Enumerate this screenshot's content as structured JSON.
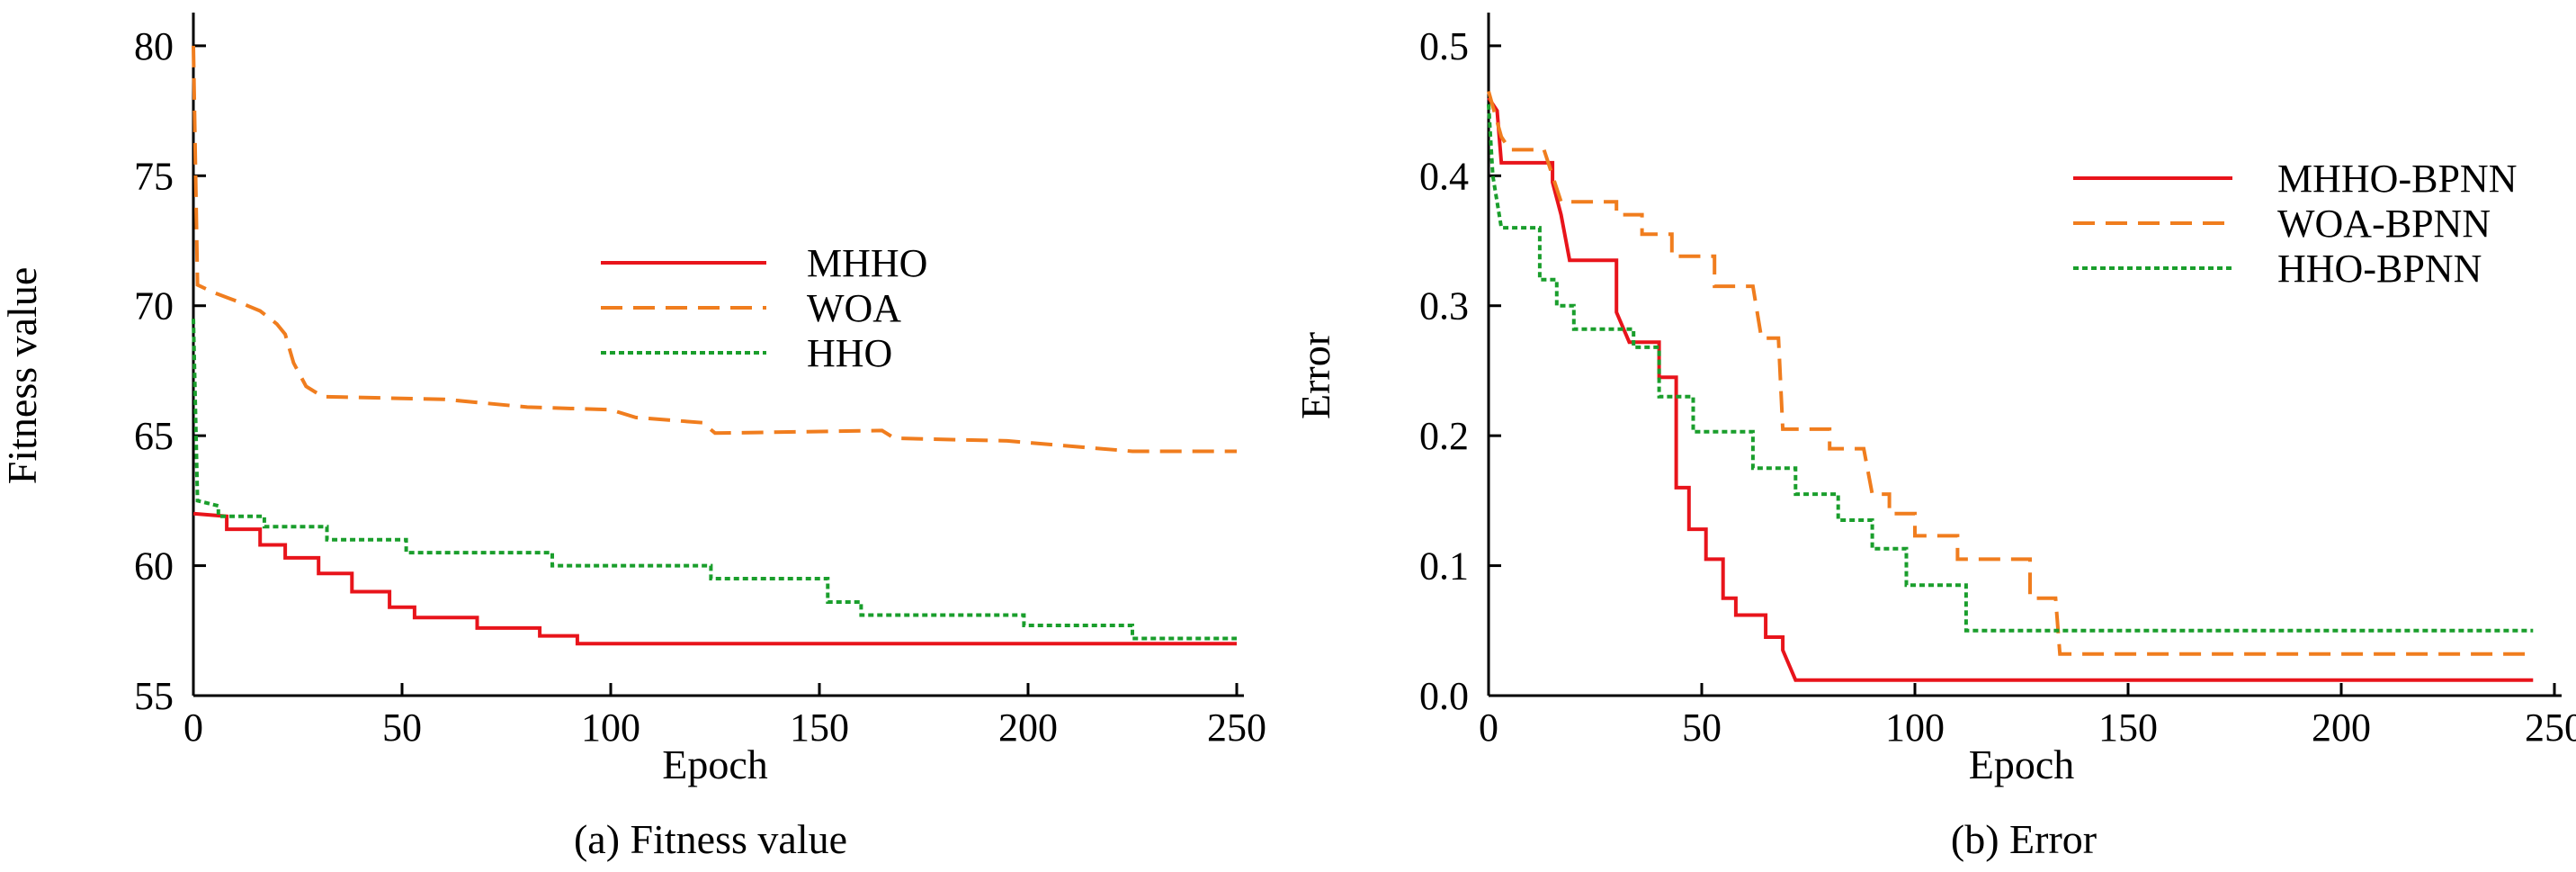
{
  "panels": [
    {
      "caption": "(a) Fitness value"
    },
    {
      "caption": "(b) Error"
    }
  ],
  "chart_data": [
    {
      "type": "line",
      "step": true,
      "xlabel": "Epoch",
      "ylabel": "Fitness value",
      "xlim": [
        0,
        250
      ],
      "ylim": [
        55,
        81
      ],
      "xticks": [
        0,
        50,
        100,
        150,
        200,
        250
      ],
      "yticks": [
        55,
        60,
        65,
        70,
        75,
        80
      ],
      "legend_position": "center-right",
      "series": [
        {
          "name": "MHHO",
          "color": "#e8141b",
          "dash": "solid",
          "points": [
            [
              0,
              62.0
            ],
            [
              8,
              61.9
            ],
            [
              8,
              61.4
            ],
            [
              16,
              61.4
            ],
            [
              16,
              60.8
            ],
            [
              22,
              60.8
            ],
            [
              22,
              60.3
            ],
            [
              30,
              60.3
            ],
            [
              30,
              59.7
            ],
            [
              38,
              59.7
            ],
            [
              38,
              59.0
            ],
            [
              47,
              59.0
            ],
            [
              47,
              58.4
            ],
            [
              53,
              58.4
            ],
            [
              53,
              58.0
            ],
            [
              68,
              58.0
            ],
            [
              68,
              57.6
            ],
            [
              83,
              57.6
            ],
            [
              83,
              57.3
            ],
            [
              92,
              57.3
            ],
            [
              92,
              57.0
            ],
            [
              250,
              57.0
            ]
          ]
        },
        {
          "name": "WOA",
          "color": "#f07d1e",
          "dash": "dashed",
          "points": [
            [
              0,
              80.0
            ],
            [
              1,
              70.8
            ],
            [
              5,
              70.5
            ],
            [
              10,
              70.2
            ],
            [
              16,
              69.8
            ],
            [
              20,
              69.3
            ],
            [
              22,
              68.9
            ],
            [
              24,
              67.8
            ],
            [
              27,
              66.9
            ],
            [
              31,
              66.5
            ],
            [
              60,
              66.4
            ],
            [
              80,
              66.1
            ],
            [
              100,
              66.0
            ],
            [
              106,
              65.7
            ],
            [
              122,
              65.5
            ],
            [
              125,
              65.1
            ],
            [
              165,
              65.2
            ],
            [
              168,
              64.9
            ],
            [
              195,
              64.8
            ],
            [
              225,
              64.4
            ],
            [
              250,
              64.4
            ]
          ]
        },
        {
          "name": "HHO",
          "color": "#1a9e2c",
          "dash": "dotted",
          "points": [
            [
              0,
              69.5
            ],
            [
              1,
              62.5
            ],
            [
              6,
              62.3
            ],
            [
              6,
              61.9
            ],
            [
              17,
              61.9
            ],
            [
              17,
              61.5
            ],
            [
              32,
              61.5
            ],
            [
              32,
              61.0
            ],
            [
              51,
              61.0
            ],
            [
              51,
              60.5
            ],
            [
              86,
              60.5
            ],
            [
              86,
              60.0
            ],
            [
              124,
              60.0
            ],
            [
              124,
              59.5
            ],
            [
              152,
              59.5
            ],
            [
              152,
              58.6
            ],
            [
              160,
              58.6
            ],
            [
              160,
              58.1
            ],
            [
              199,
              58.1
            ],
            [
              199,
              57.7
            ],
            [
              225,
              57.7
            ],
            [
              225,
              57.2
            ],
            [
              250,
              57.2
            ]
          ]
        }
      ]
    },
    {
      "type": "line",
      "step": true,
      "xlabel": "Epoch",
      "ylabel": "Error",
      "xlim": [
        0,
        250
      ],
      "ylim": [
        0,
        0.52
      ],
      "xticks": [
        0,
        50,
        100,
        150,
        200,
        250
      ],
      "yticks": [
        0.0,
        0.1,
        0.2,
        0.3,
        0.4,
        0.5
      ],
      "ytick_labels": [
        "0.0",
        "0.1",
        "0.2",
        "0.3",
        "0.4",
        "0.5"
      ],
      "legend_position": "top-right",
      "series": [
        {
          "name": "MHHO-BPNN",
          "color": "#e8141b",
          "dash": "solid",
          "points": [
            [
              0,
              0.46
            ],
            [
              2,
              0.45
            ],
            [
              3,
              0.41
            ],
            [
              15,
              0.41
            ],
            [
              15,
              0.395
            ],
            [
              17,
              0.37
            ],
            [
              19,
              0.335
            ],
            [
              30,
              0.335
            ],
            [
              30,
              0.295
            ],
            [
              33,
              0.272
            ],
            [
              40,
              0.272
            ],
            [
              40,
              0.245
            ],
            [
              44,
              0.245
            ],
            [
              44,
              0.16
            ],
            [
              47,
              0.16
            ],
            [
              47,
              0.128
            ],
            [
              51,
              0.128
            ],
            [
              51,
              0.105
            ],
            [
              55,
              0.105
            ],
            [
              55,
              0.075
            ],
            [
              58,
              0.075
            ],
            [
              58,
              0.062
            ],
            [
              65,
              0.062
            ],
            [
              65,
              0.045
            ],
            [
              69,
              0.045
            ],
            [
              69,
              0.035
            ],
            [
              72,
              0.012
            ],
            [
              245,
              0.012
            ]
          ]
        },
        {
          "name": "WOA-BPNN",
          "color": "#f07d1e",
          "dash": "dashed",
          "points": [
            [
              0,
              0.465
            ],
            [
              3,
              0.43
            ],
            [
              5,
              0.42
            ],
            [
              13,
              0.42
            ],
            [
              15,
              0.4
            ],
            [
              17,
              0.38
            ],
            [
              30,
              0.38
            ],
            [
              30,
              0.37
            ],
            [
              36,
              0.37
            ],
            [
              36,
              0.355
            ],
            [
              43,
              0.355
            ],
            [
              43,
              0.338
            ],
            [
              53,
              0.338
            ],
            [
              53,
              0.315
            ],
            [
              62,
              0.315
            ],
            [
              64,
              0.275
            ],
            [
              68,
              0.275
            ],
            [
              69,
              0.205
            ],
            [
              80,
              0.205
            ],
            [
              80,
              0.19
            ],
            [
              88,
              0.19
            ],
            [
              90,
              0.155
            ],
            [
              94,
              0.155
            ],
            [
              94,
              0.14
            ],
            [
              100,
              0.14
            ],
            [
              100,
              0.123
            ],
            [
              110,
              0.123
            ],
            [
              110,
              0.105
            ],
            [
              127,
              0.105
            ],
            [
              127,
              0.075
            ],
            [
              133,
              0.075
            ],
            [
              134,
              0.032
            ],
            [
              245,
              0.032
            ]
          ]
        },
        {
          "name": "HHO-BPNN",
          "color": "#1a9e2c",
          "dash": "dotted",
          "points": [
            [
              0,
              0.455
            ],
            [
              1,
              0.4
            ],
            [
              3,
              0.36
            ],
            [
              12,
              0.36
            ],
            [
              12,
              0.32
            ],
            [
              16,
              0.32
            ],
            [
              16,
              0.3
            ],
            [
              20,
              0.3
            ],
            [
              20,
              0.282
            ],
            [
              34,
              0.282
            ],
            [
              34,
              0.268
            ],
            [
              40,
              0.268
            ],
            [
              40,
              0.23
            ],
            [
              48,
              0.23
            ],
            [
              48,
              0.203
            ],
            [
              62,
              0.203
            ],
            [
              62,
              0.175
            ],
            [
              72,
              0.175
            ],
            [
              72,
              0.155
            ],
            [
              82,
              0.155
            ],
            [
              82,
              0.135
            ],
            [
              90,
              0.135
            ],
            [
              90,
              0.113
            ],
            [
              98,
              0.113
            ],
            [
              98,
              0.085
            ],
            [
              112,
              0.085
            ],
            [
              112,
              0.05
            ],
            [
              245,
              0.05
            ]
          ]
        }
      ]
    }
  ]
}
